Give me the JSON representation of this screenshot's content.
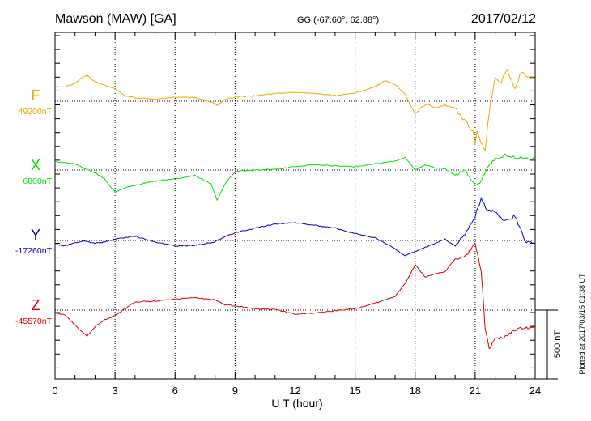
{
  "header": {
    "station": "Mawson (MAW)  [GA]",
    "coords": "GG (-67.60°,  62.88°)",
    "date": "2017/02/12"
  },
  "footer": {
    "plotted": "Plotted at 2017/03/15 01:38 UT"
  },
  "colors": {
    "F": "#f0a800",
    "X": "#00dd00",
    "Y": "#0000dd",
    "Z": "#dd0000"
  },
  "chart_data": {
    "type": "line",
    "xlabel": "U T (hour)",
    "xlim": [
      0,
      24
    ],
    "x_ticks": [
      0,
      3,
      6,
      9,
      12,
      15,
      18,
      21,
      24
    ],
    "scale_bar": {
      "value_nT": 500,
      "label": "500 nT"
    },
    "grid": "vertical dotted at 3-hour intervals; dotted baseline per series",
    "series": [
      {
        "name": "F",
        "baseline_label": "49200nT",
        "baseline_nT": 49200,
        "x": [
          0,
          0.5,
          1,
          1.3,
          1.6,
          2,
          2.5,
          3,
          3.5,
          4,
          5,
          6,
          7,
          7.8,
          8.1,
          8.5,
          9,
          10,
          11,
          12,
          13,
          14,
          15,
          16,
          16.5,
          17,
          17.5,
          17.8,
          18,
          18.3,
          18.6,
          19,
          19.5,
          20,
          20.3,
          20.6,
          20.9,
          21,
          21.1,
          21.3,
          21.5,
          21.7,
          22,
          22.3,
          22.6,
          23,
          23.3,
          23.6,
          24
        ],
        "values": [
          49305,
          49305,
          49330,
          49365,
          49390,
          49340,
          49315,
          49290,
          49240,
          49225,
          49215,
          49230,
          49225,
          49195,
          49170,
          49210,
          49230,
          49240,
          49255,
          49265,
          49255,
          49240,
          49260,
          49305,
          49350,
          49320,
          49250,
          49160,
          49105,
          49155,
          49180,
          49150,
          49170,
          49150,
          49085,
          49040,
          48980,
          48880,
          48990,
          48900,
          48850,
          49120,
          49380,
          49340,
          49430,
          49290,
          49410,
          49380,
          49360
        ]
      },
      {
        "name": "X",
        "baseline_label": "6800nT",
        "baseline_nT": 6800,
        "x": [
          0,
          0.5,
          1,
          1.5,
          2,
          2.5,
          3,
          3.5,
          4,
          5,
          6,
          7,
          7.8,
          8.1,
          8.5,
          9,
          10,
          11,
          12,
          13,
          14,
          15,
          16,
          17,
          17.5,
          18,
          18.5,
          19,
          19.5,
          20,
          20.5,
          21,
          21.3,
          21.6,
          22,
          22.5,
          23,
          23.5,
          24
        ],
        "values": [
          6860,
          6855,
          6845,
          6810,
          6780,
          6730,
          6640,
          6670,
          6690,
          6720,
          6735,
          6760,
          6700,
          6580,
          6700,
          6790,
          6800,
          6805,
          6825,
          6840,
          6830,
          6825,
          6845,
          6865,
          6890,
          6800,
          6840,
          6815,
          6810,
          6760,
          6800,
          6690,
          6720,
          6820,
          6880,
          6910,
          6895,
          6880,
          6890
        ]
      },
      {
        "name": "Y",
        "baseline_label": "-17260nT",
        "baseline_nT": -17260,
        "x": [
          0,
          0.5,
          1,
          1.5,
          2,
          2.5,
          3,
          4,
          5,
          6,
          7,
          8,
          8.5,
          9,
          10,
          11,
          12,
          13,
          14,
          15,
          16,
          17,
          17.5,
          18,
          18.5,
          19,
          19.5,
          20,
          20.5,
          21,
          21.3,
          21.6,
          22,
          22.5,
          23,
          23.5,
          24
        ],
        "values": [
          -17290,
          -17300,
          -17275,
          -17265,
          -17280,
          -17270,
          -17250,
          -17230,
          -17270,
          -17300,
          -17295,
          -17270,
          -17230,
          -17205,
          -17170,
          -17140,
          -17130,
          -17150,
          -17170,
          -17210,
          -17240,
          -17320,
          -17370,
          -17340,
          -17310,
          -17280,
          -17250,
          -17300,
          -17210,
          -17080,
          -16960,
          -17040,
          -17050,
          -17120,
          -17080,
          -17270,
          -17280
        ]
      },
      {
        "name": "Z",
        "baseline_label": "-45570nT",
        "baseline_nT": -45570,
        "x": [
          0,
          0.5,
          1,
          1.6,
          2,
          2.5,
          3,
          4,
          5,
          6,
          7,
          8,
          8.5,
          9,
          10,
          11,
          12,
          13,
          14,
          15,
          16,
          17,
          17.5,
          18,
          18.5,
          19,
          19.5,
          20,
          20.5,
          21,
          21.3,
          21.5,
          21.7,
          22,
          22.5,
          23,
          23.5,
          24
        ],
        "values": [
          -45590,
          -45605,
          -45680,
          -45760,
          -45690,
          -45640,
          -45610,
          -45510,
          -45505,
          -45490,
          -45480,
          -45495,
          -45530,
          -45540,
          -45560,
          -45565,
          -45600,
          -45590,
          -45575,
          -45560,
          -45520,
          -45470,
          -45380,
          -45240,
          -45330,
          -45310,
          -45290,
          -45200,
          -45180,
          -45090,
          -45280,
          -45700,
          -45850,
          -45780,
          -45760,
          -45710,
          -45700,
          -45690
        ]
      }
    ]
  }
}
